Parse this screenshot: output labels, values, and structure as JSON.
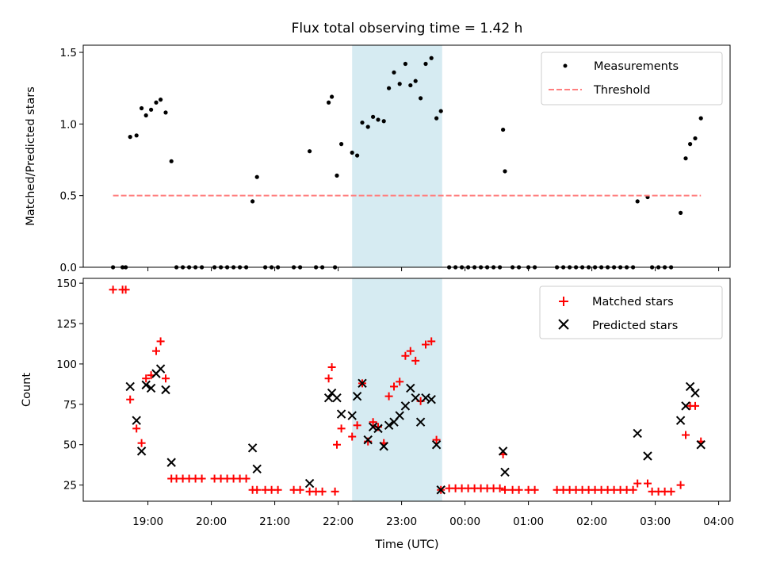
{
  "chart_data": {
    "title": "Flux total observing time = 1.42 h",
    "xlabel": "Time (UTC)",
    "x_unit": "hour (UTC, continuing past midnight)",
    "xlim": [
      17.98,
      28.18
    ],
    "xtick_labels": [
      "19:00",
      "20:00",
      "21:00",
      "22:00",
      "23:00",
      "00:00",
      "01:00",
      "02:00",
      "03:00",
      "04:00"
    ],
    "highlight_span": {
      "start": 22.22,
      "end": 23.64,
      "color": "#add8e6"
    },
    "panels": [
      {
        "type": "scatter",
        "ylabel": "Matched/Predicted stars",
        "ylim": [
          0,
          1.55
        ],
        "yticks": [
          0.0,
          0.5,
          1.0,
          1.5
        ],
        "ytick_labels": [
          "0.0",
          "0.5",
          "1.0",
          "1.5"
        ],
        "legend_position": "top-right",
        "series": [
          {
            "name": "Measurements",
            "marker": "dot",
            "color": "#000000",
            "points": [
              [
                18.45,
                0
              ],
              [
                18.6,
                0
              ],
              [
                18.65,
                0
              ],
              [
                18.72,
                0.91
              ],
              [
                18.82,
                0.92
              ],
              [
                18.9,
                1.11
              ],
              [
                18.97,
                1.06
              ],
              [
                19.05,
                1.1
              ],
              [
                19.13,
                1.15
              ],
              [
                19.2,
                1.17
              ],
              [
                19.28,
                1.08
              ],
              [
                19.37,
                0.74
              ],
              [
                19.45,
                0
              ],
              [
                19.55,
                0
              ],
              [
                19.65,
                0
              ],
              [
                19.75,
                0
              ],
              [
                19.85,
                0
              ],
              [
                20.05,
                0
              ],
              [
                20.15,
                0
              ],
              [
                20.25,
                0
              ],
              [
                20.35,
                0
              ],
              [
                20.45,
                0
              ],
              [
                20.55,
                0
              ],
              [
                20.65,
                0.46
              ],
              [
                20.72,
                0.63
              ],
              [
                20.85,
                0
              ],
              [
                20.95,
                0
              ],
              [
                21.05,
                0
              ],
              [
                21.3,
                0
              ],
              [
                21.4,
                0
              ],
              [
                21.55,
                0.81
              ],
              [
                21.65,
                0
              ],
              [
                21.75,
                0
              ],
              [
                21.85,
                1.15
              ],
              [
                21.9,
                1.19
              ],
              [
                21.95,
                0
              ],
              [
                21.98,
                0.64
              ],
              [
                22.05,
                0.86
              ],
              [
                22.22,
                0.8
              ],
              [
                22.3,
                0.78
              ],
              [
                22.38,
                1.01
              ],
              [
                22.47,
                0.98
              ],
              [
                22.55,
                1.05
              ],
              [
                22.63,
                1.03
              ],
              [
                22.72,
                1.02
              ],
              [
                22.8,
                1.25
              ],
              [
                22.88,
                1.36
              ],
              [
                22.97,
                1.28
              ],
              [
                23.06,
                1.42
              ],
              [
                23.14,
                1.27
              ],
              [
                23.22,
                1.3
              ],
              [
                23.3,
                1.18
              ],
              [
                23.38,
                1.42
              ],
              [
                23.47,
                1.46
              ],
              [
                23.55,
                1.04
              ],
              [
                23.62,
                1.09
              ],
              [
                23.75,
                0
              ],
              [
                23.85,
                0
              ],
              [
                23.95,
                0
              ],
              [
                24.05,
                0
              ],
              [
                24.15,
                0
              ],
              [
                24.25,
                0
              ],
              [
                24.35,
                0
              ],
              [
                24.45,
                0
              ],
              [
                24.55,
                0
              ],
              [
                24.6,
                0.96
              ],
              [
                24.63,
                0.67
              ],
              [
                24.75,
                0
              ],
              [
                24.85,
                0
              ],
              [
                25.0,
                0
              ],
              [
                25.1,
                0
              ],
              [
                25.45,
                0
              ],
              [
                25.55,
                0
              ],
              [
                25.65,
                0
              ],
              [
                25.75,
                0
              ],
              [
                25.85,
                0
              ],
              [
                25.95,
                0
              ],
              [
                26.05,
                0
              ],
              [
                26.15,
                0
              ],
              [
                26.25,
                0
              ],
              [
                26.35,
                0
              ],
              [
                26.45,
                0
              ],
              [
                26.55,
                0
              ],
              [
                26.65,
                0
              ],
              [
                26.72,
                0.46
              ],
              [
                26.88,
                0.49
              ],
              [
                26.95,
                0
              ],
              [
                27.05,
                0
              ],
              [
                27.15,
                0
              ],
              [
                27.25,
                0
              ],
              [
                27.4,
                0.38
              ],
              [
                27.48,
                0.76
              ],
              [
                27.55,
                0.86
              ],
              [
                27.63,
                0.9
              ],
              [
                27.72,
                1.04
              ]
            ]
          },
          {
            "name": "Threshold",
            "marker": "dashed-line",
            "color": "#ff7f7f",
            "points": [
              [
                18.45,
                0.5
              ],
              [
                27.72,
                0.5
              ]
            ]
          }
        ]
      },
      {
        "type": "scatter",
        "ylabel": "Count",
        "ylim": [
          15,
          153
        ],
        "yticks": [
          25,
          50,
          75,
          100,
          125,
          150
        ],
        "ytick_labels": [
          "25",
          "50",
          "75",
          "100",
          "125",
          "150"
        ],
        "legend_position": "top-right",
        "series": [
          {
            "name": "Matched stars",
            "marker": "plus",
            "color": "#ff0000",
            "points": [
              [
                18.45,
                146
              ],
              [
                18.6,
                146
              ],
              [
                18.65,
                146
              ],
              [
                18.72,
                78
              ],
              [
                18.82,
                60
              ],
              [
                18.9,
                51
              ],
              [
                18.97,
                91
              ],
              [
                19.05,
                93
              ],
              [
                19.13,
                108
              ],
              [
                19.2,
                114
              ],
              [
                19.28,
                91
              ],
              [
                19.37,
                29
              ],
              [
                19.45,
                29
              ],
              [
                19.55,
                29
              ],
              [
                19.65,
                29
              ],
              [
                19.75,
                29
              ],
              [
                19.85,
                29
              ],
              [
                20.05,
                29
              ],
              [
                20.15,
                29
              ],
              [
                20.25,
                29
              ],
              [
                20.35,
                29
              ],
              [
                20.45,
                29
              ],
              [
                20.55,
                29
              ],
              [
                20.65,
                22
              ],
              [
                20.72,
                22
              ],
              [
                20.85,
                22
              ],
              [
                20.95,
                22
              ],
              [
                21.05,
                22
              ],
              [
                21.3,
                22
              ],
              [
                21.4,
                22
              ],
              [
                21.55,
                21
              ],
              [
                21.65,
                21
              ],
              [
                21.75,
                21
              ],
              [
                21.85,
                91
              ],
              [
                21.9,
                98
              ],
              [
                21.95,
                21
              ],
              [
                21.98,
                50
              ],
              [
                22.05,
                60
              ],
              [
                22.22,
                55
              ],
              [
                22.3,
                62
              ],
              [
                22.38,
                88
              ],
              [
                22.47,
                52
              ],
              [
                22.55,
                64
              ],
              [
                22.63,
                61
              ],
              [
                22.72,
                51
              ],
              [
                22.8,
                80
              ],
              [
                22.88,
                86
              ],
              [
                22.97,
                89
              ],
              [
                23.06,
                105
              ],
              [
                23.14,
                108
              ],
              [
                23.22,
                102
              ],
              [
                23.3,
                77
              ],
              [
                23.38,
                112
              ],
              [
                23.47,
                114
              ],
              [
                23.55,
                53
              ],
              [
                23.62,
                22
              ],
              [
                23.75,
                23
              ],
              [
                23.85,
                23
              ],
              [
                23.95,
                23
              ],
              [
                24.05,
                23
              ],
              [
                24.15,
                23
              ],
              [
                24.25,
                23
              ],
              [
                24.35,
                23
              ],
              [
                24.45,
                23
              ],
              [
                24.55,
                23
              ],
              [
                24.6,
                44
              ],
              [
                24.63,
                22
              ],
              [
                24.75,
                22
              ],
              [
                24.85,
                22
              ],
              [
                25.0,
                22
              ],
              [
                25.1,
                22
              ],
              [
                25.45,
                22
              ],
              [
                25.55,
                22
              ],
              [
                25.65,
                22
              ],
              [
                25.75,
                22
              ],
              [
                25.85,
                22
              ],
              [
                25.95,
                22
              ],
              [
                26.05,
                22
              ],
              [
                26.15,
                22
              ],
              [
                26.25,
                22
              ],
              [
                26.35,
                22
              ],
              [
                26.45,
                22
              ],
              [
                26.55,
                22
              ],
              [
                26.65,
                22
              ],
              [
                26.72,
                26
              ],
              [
                26.88,
                26
              ],
              [
                26.95,
                21
              ],
              [
                27.05,
                21
              ],
              [
                27.15,
                21
              ],
              [
                27.25,
                21
              ],
              [
                27.4,
                25
              ],
              [
                27.48,
                56
              ],
              [
                27.55,
                74
              ],
              [
                27.63,
                74
              ],
              [
                27.72,
                52
              ]
            ]
          },
          {
            "name": "Predicted stars",
            "marker": "x",
            "color": "#000000",
            "points": [
              [
                18.72,
                86
              ],
              [
                18.82,
                65
              ],
              [
                18.9,
                46
              ],
              [
                18.97,
                87
              ],
              [
                19.05,
                85
              ],
              [
                19.13,
                94
              ],
              [
                19.2,
                97
              ],
              [
                19.28,
                84
              ],
              [
                19.37,
                39
              ],
              [
                20.65,
                48
              ],
              [
                20.72,
                35
              ],
              [
                21.55,
                26
              ],
              [
                21.85,
                79
              ],
              [
                21.9,
                82
              ],
              [
                21.98,
                79
              ],
              [
                22.05,
                69
              ],
              [
                22.22,
                68
              ],
              [
                22.3,
                80
              ],
              [
                22.38,
                88
              ],
              [
                22.47,
                53
              ],
              [
                22.55,
                61
              ],
              [
                22.63,
                60
              ],
              [
                22.72,
                49
              ],
              [
                22.8,
                62
              ],
              [
                22.88,
                64
              ],
              [
                22.97,
                68
              ],
              [
                23.06,
                74
              ],
              [
                23.14,
                85
              ],
              [
                23.22,
                79
              ],
              [
                23.3,
                64
              ],
              [
                23.38,
                79
              ],
              [
                23.47,
                78
              ],
              [
                23.55,
                50
              ],
              [
                23.62,
                22
              ],
              [
                24.6,
                46
              ],
              [
                24.63,
                33
              ],
              [
                26.72,
                57
              ],
              [
                26.88,
                43
              ],
              [
                27.4,
                65
              ],
              [
                27.48,
                74
              ],
              [
                27.55,
                86
              ],
              [
                27.63,
                82
              ],
              [
                27.72,
                50
              ]
            ]
          }
        ]
      }
    ]
  }
}
